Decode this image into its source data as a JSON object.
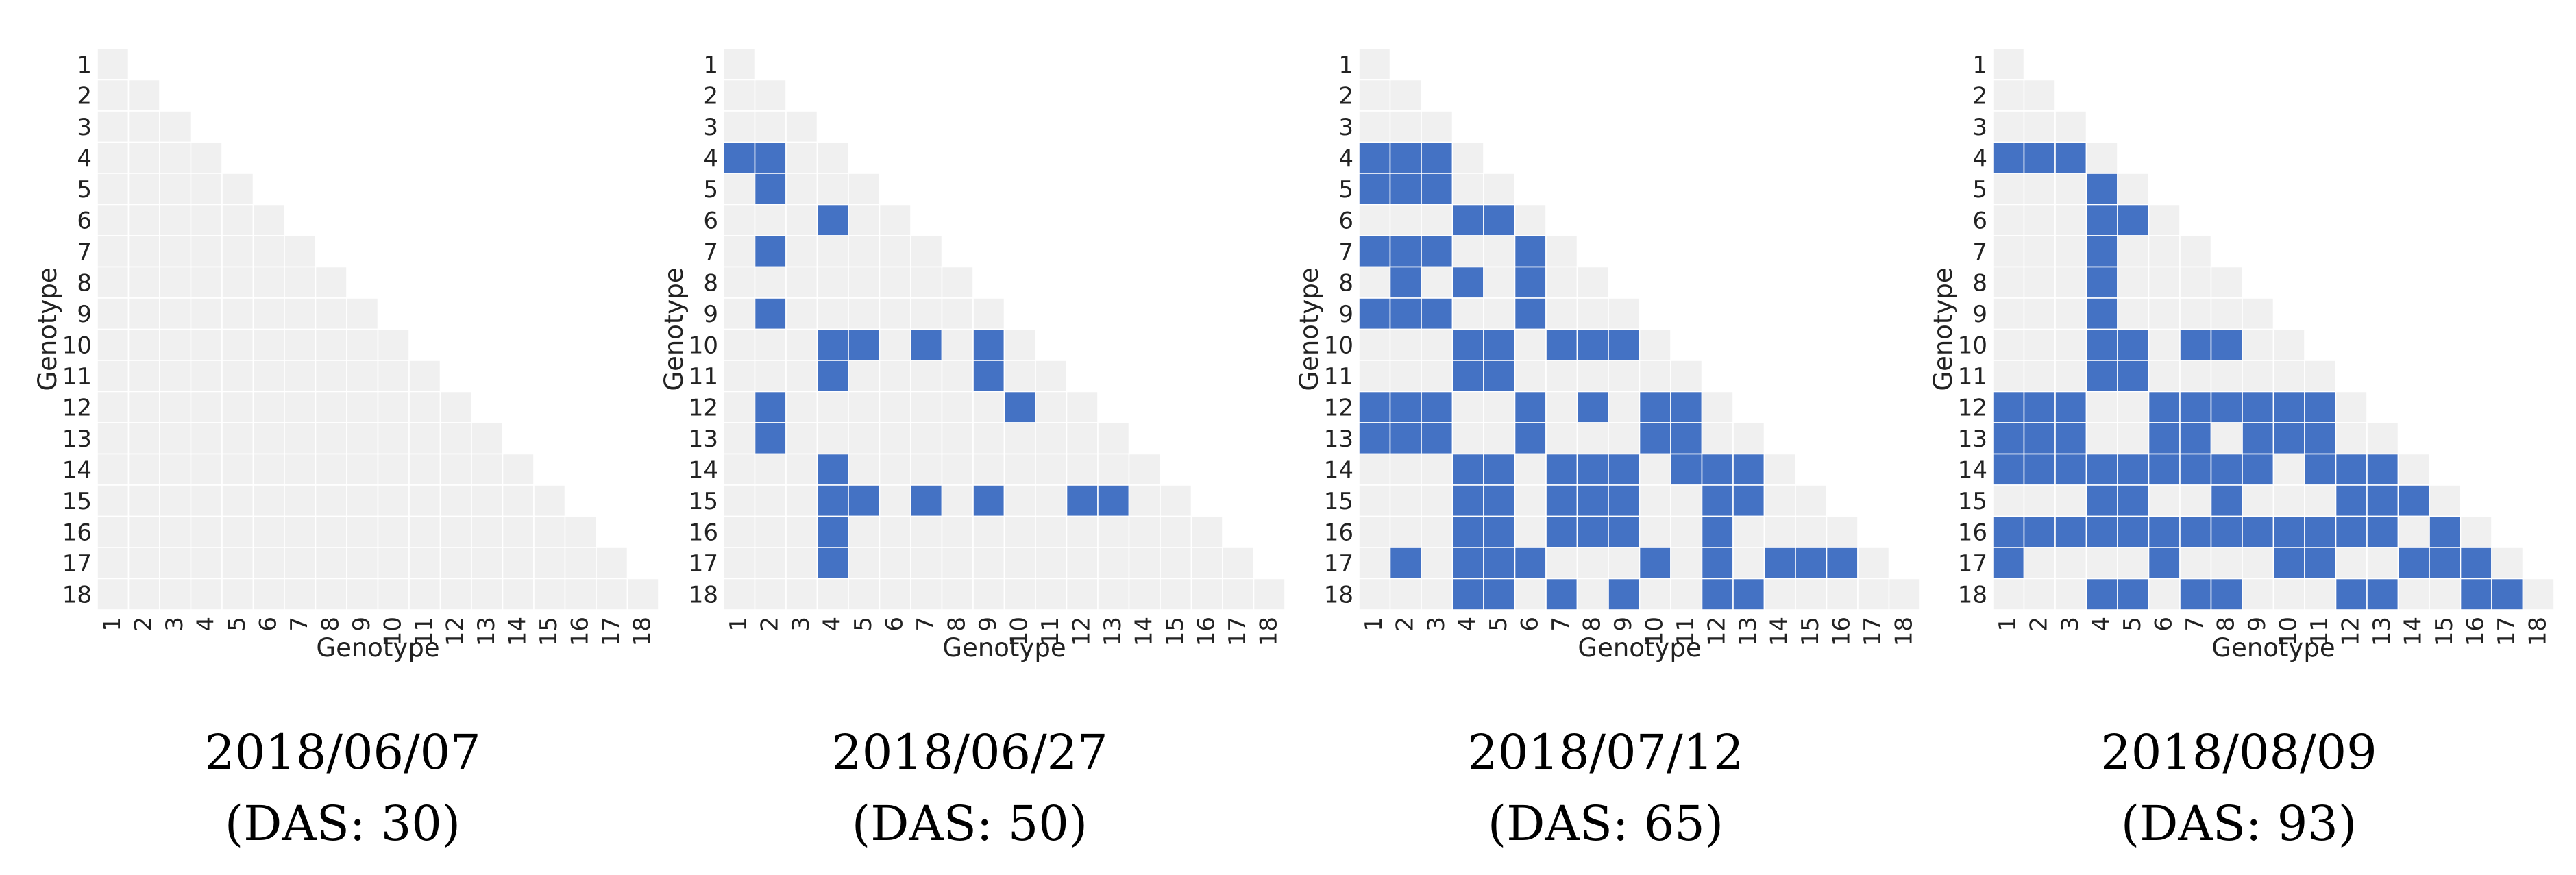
{
  "figure": {
    "background_color": "#ffffff",
    "cell_color": "#f0f0f0",
    "significant_color": "#4472c4",
    "cell_gap_color": "#ffffff"
  },
  "chart_data": [
    {
      "type": "heatmap",
      "title": "2018/06/07",
      "subtitle": "(DAS: 30)",
      "xlabel": "Genotype",
      "ylabel": "Genotype",
      "categories": [
        "1",
        "2",
        "3",
        "4",
        "5",
        "6",
        "7",
        "8",
        "9",
        "10",
        "11",
        "12",
        "13",
        "14",
        "15",
        "16",
        "17",
        "18"
      ],
      "significant_pairs": []
    },
    {
      "type": "heatmap",
      "title": "2018/06/27",
      "subtitle": "(DAS: 50)",
      "xlabel": "Genotype",
      "ylabel": "Genotype",
      "categories": [
        "1",
        "2",
        "3",
        "4",
        "5",
        "6",
        "7",
        "8",
        "9",
        "10",
        "11",
        "12",
        "13",
        "14",
        "15",
        "16",
        "17",
        "18"
      ],
      "significant_pairs": [
        [
          4,
          1
        ],
        [
          4,
          2
        ],
        [
          5,
          2
        ],
        [
          6,
          4
        ],
        [
          7,
          2
        ],
        [
          9,
          2
        ],
        [
          10,
          4
        ],
        [
          10,
          5
        ],
        [
          10,
          7
        ],
        [
          10,
          9
        ],
        [
          11,
          4
        ],
        [
          11,
          9
        ],
        [
          12,
          2
        ],
        [
          12,
          10
        ],
        [
          13,
          2
        ],
        [
          14,
          4
        ],
        [
          15,
          4
        ],
        [
          15,
          5
        ],
        [
          15,
          7
        ],
        [
          15,
          9
        ],
        [
          15,
          12
        ],
        [
          15,
          13
        ],
        [
          16,
          4
        ],
        [
          17,
          4
        ]
      ]
    },
    {
      "type": "heatmap",
      "title": "2018/07/12",
      "subtitle": "(DAS: 65)",
      "xlabel": "Genotype",
      "ylabel": "Genotype",
      "categories": [
        "1",
        "2",
        "3",
        "4",
        "5",
        "6",
        "7",
        "8",
        "9",
        "10",
        "11",
        "12",
        "13",
        "14",
        "15",
        "16",
        "17",
        "18"
      ],
      "significant_pairs": [
        [
          4,
          1
        ],
        [
          4,
          2
        ],
        [
          4,
          3
        ],
        [
          5,
          1
        ],
        [
          5,
          2
        ],
        [
          5,
          3
        ],
        [
          6,
          4
        ],
        [
          6,
          5
        ],
        [
          7,
          1
        ],
        [
          7,
          2
        ],
        [
          7,
          3
        ],
        [
          7,
          6
        ],
        [
          8,
          2
        ],
        [
          8,
          4
        ],
        [
          8,
          6
        ],
        [
          9,
          1
        ],
        [
          9,
          2
        ],
        [
          9,
          3
        ],
        [
          9,
          6
        ],
        [
          10,
          4
        ],
        [
          10,
          5
        ],
        [
          10,
          7
        ],
        [
          10,
          8
        ],
        [
          10,
          9
        ],
        [
          11,
          4
        ],
        [
          11,
          5
        ],
        [
          12,
          1
        ],
        [
          12,
          2
        ],
        [
          12,
          3
        ],
        [
          12,
          6
        ],
        [
          12,
          8
        ],
        [
          12,
          10
        ],
        [
          12,
          11
        ],
        [
          13,
          1
        ],
        [
          13,
          2
        ],
        [
          13,
          3
        ],
        [
          13,
          6
        ],
        [
          13,
          10
        ],
        [
          13,
          11
        ],
        [
          14,
          4
        ],
        [
          14,
          5
        ],
        [
          14,
          7
        ],
        [
          14,
          8
        ],
        [
          14,
          9
        ],
        [
          14,
          11
        ],
        [
          14,
          12
        ],
        [
          14,
          13
        ],
        [
          15,
          4
        ],
        [
          15,
          5
        ],
        [
          15,
          7
        ],
        [
          15,
          8
        ],
        [
          15,
          9
        ],
        [
          15,
          12
        ],
        [
          15,
          13
        ],
        [
          16,
          4
        ],
        [
          16,
          5
        ],
        [
          16,
          7
        ],
        [
          16,
          8
        ],
        [
          16,
          9
        ],
        [
          16,
          12
        ],
        [
          17,
          2
        ],
        [
          17,
          4
        ],
        [
          17,
          5
        ],
        [
          17,
          6
        ],
        [
          17,
          10
        ],
        [
          17,
          12
        ],
        [
          17,
          14
        ],
        [
          17,
          15
        ],
        [
          17,
          16
        ],
        [
          18,
          4
        ],
        [
          18,
          5
        ],
        [
          18,
          7
        ],
        [
          18,
          9
        ],
        [
          18,
          12
        ],
        [
          18,
          13
        ]
      ]
    },
    {
      "type": "heatmap",
      "title": "2018/08/09",
      "subtitle": "(DAS: 93)",
      "xlabel": "Genotype",
      "ylabel": "Genotype",
      "categories": [
        "1",
        "2",
        "3",
        "4",
        "5",
        "6",
        "7",
        "8",
        "9",
        "10",
        "11",
        "12",
        "13",
        "14",
        "15",
        "16",
        "17",
        "18"
      ],
      "significant_pairs": [
        [
          4,
          1
        ],
        [
          4,
          2
        ],
        [
          4,
          3
        ],
        [
          5,
          4
        ],
        [
          6,
          4
        ],
        [
          6,
          5
        ],
        [
          7,
          4
        ],
        [
          8,
          4
        ],
        [
          9,
          4
        ],
        [
          10,
          4
        ],
        [
          10,
          5
        ],
        [
          10,
          7
        ],
        [
          10,
          8
        ],
        [
          11,
          4
        ],
        [
          11,
          5
        ],
        [
          12,
          1
        ],
        [
          12,
          2
        ],
        [
          12,
          3
        ],
        [
          12,
          6
        ],
        [
          12,
          7
        ],
        [
          12,
          8
        ],
        [
          12,
          9
        ],
        [
          12,
          10
        ],
        [
          12,
          11
        ],
        [
          13,
          1
        ],
        [
          13,
          2
        ],
        [
          13,
          3
        ],
        [
          13,
          6
        ],
        [
          13,
          7
        ],
        [
          13,
          9
        ],
        [
          13,
          10
        ],
        [
          13,
          11
        ],
        [
          14,
          1
        ],
        [
          14,
          2
        ],
        [
          14,
          3
        ],
        [
          14,
          4
        ],
        [
          14,
          5
        ],
        [
          14,
          6
        ],
        [
          14,
          7
        ],
        [
          14,
          8
        ],
        [
          14,
          9
        ],
        [
          14,
          11
        ],
        [
          14,
          12
        ],
        [
          14,
          13
        ],
        [
          15,
          4
        ],
        [
          15,
          5
        ],
        [
          15,
          8
        ],
        [
          15,
          12
        ],
        [
          15,
          13
        ],
        [
          15,
          14
        ],
        [
          16,
          1
        ],
        [
          16,
          2
        ],
        [
          16,
          3
        ],
        [
          16,
          4
        ],
        [
          16,
          5
        ],
        [
          16,
          6
        ],
        [
          16,
          7
        ],
        [
          16,
          8
        ],
        [
          16,
          9
        ],
        [
          16,
          10
        ],
        [
          16,
          11
        ],
        [
          16,
          12
        ],
        [
          16,
          13
        ],
        [
          16,
          15
        ],
        [
          17,
          1
        ],
        [
          17,
          6
        ],
        [
          17,
          10
        ],
        [
          17,
          11
        ],
        [
          17,
          14
        ],
        [
          17,
          15
        ],
        [
          17,
          16
        ],
        [
          18,
          4
        ],
        [
          18,
          5
        ],
        [
          18,
          7
        ],
        [
          18,
          8
        ],
        [
          18,
          12
        ],
        [
          18,
          13
        ],
        [
          18,
          16
        ],
        [
          18,
          17
        ]
      ]
    }
  ]
}
